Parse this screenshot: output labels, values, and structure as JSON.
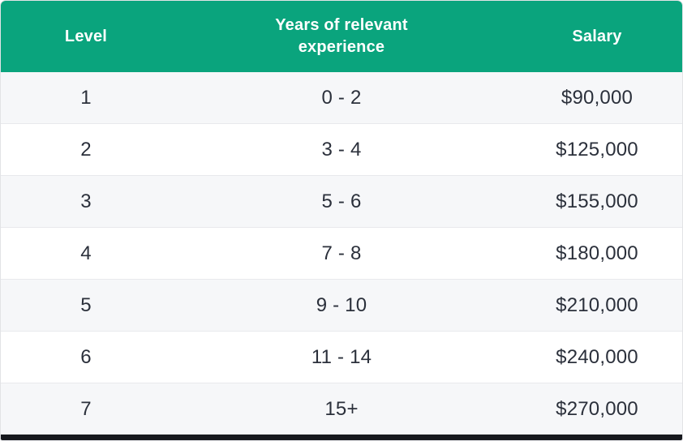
{
  "colors": {
    "header_bg": "#0aa47d",
    "header_text": "#ffffff",
    "row_bg": "#ffffff",
    "row_alt_bg": "#f6f7f9",
    "divider": "#e8e9ec",
    "cell_text": "#2b303b",
    "bottom_bar": "#17191e"
  },
  "chart_data": {
    "type": "table",
    "columns": [
      "Level",
      "Years of relevant experience",
      "Salary"
    ],
    "rows": [
      [
        "1",
        "0 - 2",
        "$90,000"
      ],
      [
        "2",
        "3 - 4",
        "$125,000"
      ],
      [
        "3",
        "5 - 6",
        "$155,000"
      ],
      [
        "4",
        "7 - 8",
        "$180,000"
      ],
      [
        "5",
        "9 - 10",
        "$210,000"
      ],
      [
        "6",
        "11 - 14",
        "$240,000"
      ],
      [
        "7",
        "15+",
        "$270,000"
      ]
    ],
    "salary_values": [
      90000,
      125000,
      155000,
      180000,
      210000,
      240000,
      270000
    ],
    "title": "",
    "legend": null,
    "grid": "horizontal-dividers"
  },
  "table": {
    "header": {
      "level": "Level",
      "experience": "Years of relevant experience",
      "salary": "Salary"
    },
    "rows": [
      {
        "level": "1",
        "experience": "0 - 2",
        "salary": "$90,000"
      },
      {
        "level": "2",
        "experience": "3 - 4",
        "salary": "$125,000"
      },
      {
        "level": "3",
        "experience": "5 - 6",
        "salary": "$155,000"
      },
      {
        "level": "4",
        "experience": "7 - 8",
        "salary": "$180,000"
      },
      {
        "level": "5",
        "experience": "9 - 10",
        "salary": "$210,000"
      },
      {
        "level": "6",
        "experience": "11 - 14",
        "salary": "$240,000"
      },
      {
        "level": "7",
        "experience": "15+",
        "salary": "$270,000"
      }
    ]
  }
}
